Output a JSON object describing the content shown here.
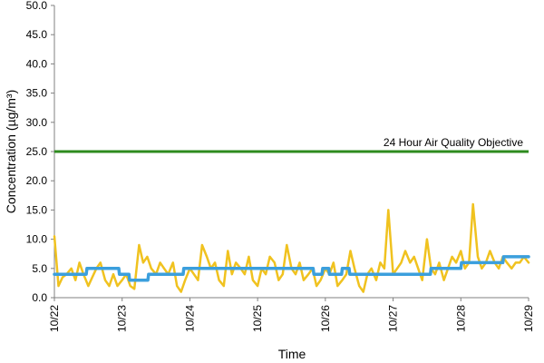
{
  "chart_data": {
    "type": "line",
    "title": "",
    "xlabel": "Time",
    "ylabel": "Concentration (µg/m³)",
    "ylim": [
      0,
      50
    ],
    "yticks": [
      "0.0",
      "5.0",
      "10.0",
      "15.0",
      "20.0",
      "25.0",
      "30.0",
      "35.0",
      "40.0",
      "45.0",
      "50.0"
    ],
    "xlim": [
      "10/22",
      "10/29"
    ],
    "xticks": [
      "10/22",
      "10/23",
      "10/24",
      "10/25",
      "10/26",
      "10/27",
      "10/28",
      "10/29"
    ],
    "grid": false,
    "legend": "none",
    "reference_lines": [
      {
        "label": "24 Hour Air Quality Objective",
        "value": 25,
        "color": "#2e8b1e"
      }
    ],
    "series": [
      {
        "color": "#f0c21f",
        "x_days": [
          0.0,
          0.06,
          0.12,
          0.18,
          0.25,
          0.31,
          0.37,
          0.43,
          0.5,
          0.56,
          0.62,
          0.68,
          0.75,
          0.81,
          0.87,
          0.93,
          1.0,
          1.06,
          1.12,
          1.18,
          1.25,
          1.31,
          1.37,
          1.43,
          1.5,
          1.56,
          1.62,
          1.68,
          1.75,
          1.81,
          1.87,
          1.93,
          2.0,
          2.06,
          2.12,
          2.18,
          2.25,
          2.31,
          2.37,
          2.43,
          2.5,
          2.56,
          2.62,
          2.68,
          2.75,
          2.81,
          2.87,
          2.93,
          3.0,
          3.06,
          3.12,
          3.18,
          3.25,
          3.31,
          3.37,
          3.43,
          3.5,
          3.56,
          3.62,
          3.68,
          3.75,
          3.81,
          3.87,
          3.93,
          4.0,
          4.06,
          4.12,
          4.18,
          4.25,
          4.31,
          4.37,
          4.43,
          4.5,
          4.56,
          4.62,
          4.68,
          4.75,
          4.81,
          4.87,
          4.93,
          5.0,
          5.06,
          5.12,
          5.18,
          5.25,
          5.31,
          5.37,
          5.43,
          5.5,
          5.56,
          5.62,
          5.68,
          5.75,
          5.81,
          5.87,
          5.93,
          6.0,
          6.06,
          6.12,
          6.18,
          6.25,
          6.31,
          6.37,
          6.43,
          6.5,
          6.56,
          6.62,
          6.68,
          6.75,
          6.81,
          6.87,
          6.93,
          7.0
        ],
        "values": [
          10.5,
          2.0,
          3.5,
          4.0,
          5.0,
          3.0,
          6.0,
          4.0,
          2.0,
          3.5,
          5.0,
          6.0,
          3.0,
          2.0,
          4.0,
          2.0,
          3.0,
          4.0,
          2.0,
          1.5,
          9.0,
          6.0,
          7.0,
          5.0,
          4.0,
          6.0,
          5.0,
          4.0,
          6.0,
          2.0,
          1.0,
          3.0,
          5.0,
          4.0,
          3.0,
          9.0,
          7.0,
          5.0,
          6.0,
          3.0,
          2.0,
          8.0,
          4.0,
          6.0,
          5.0,
          4.0,
          7.0,
          3.0,
          2.0,
          5.0,
          4.0,
          7.0,
          6.0,
          3.0,
          4.0,
          9.0,
          5.0,
          4.0,
          6.0,
          3.0,
          4.0,
          5.0,
          2.0,
          3.0,
          5.0,
          4.0,
          6.0,
          2.0,
          3.0,
          4.0,
          8.0,
          5.0,
          2.0,
          1.0,
          4.0,
          5.0,
          3.0,
          6.0,
          5.0,
          15.0,
          4.0,
          5.0,
          6.0,
          8.0,
          6.0,
          7.0,
          5.0,
          3.0,
          10.0,
          5.0,
          4.0,
          6.0,
          3.0,
          5.0,
          7.0,
          6.0,
          8.0,
          5.0,
          6.0,
          16.0,
          7.0,
          5.0,
          6.0,
          8.0,
          6.0,
          5.0,
          7.0,
          6.0,
          5.0,
          6.0,
          6.0,
          7.0,
          6.0
        ]
      },
      {
        "color": "#3b9fdd",
        "x_days": [
          0.0,
          0.47,
          0.48,
          0.95,
          0.96,
          1.1,
          1.11,
          1.38,
          1.39,
          1.9,
          1.91,
          3.0,
          3.01,
          3.82,
          3.83,
          3.95,
          3.96,
          4.05,
          4.06,
          4.24,
          4.25,
          4.35,
          4.36,
          5.55,
          5.56,
          6.0,
          6.01,
          6.48,
          6.49,
          6.62,
          6.63,
          7.0
        ],
        "values": [
          4,
          4,
          5,
          5,
          4,
          4,
          3,
          3,
          4,
          4,
          5,
          5,
          5,
          5,
          4,
          4,
          5,
          5,
          4,
          4,
          5,
          5,
          4,
          4,
          5,
          5,
          6,
          6,
          6,
          6,
          7,
          7
        ]
      }
    ]
  }
}
